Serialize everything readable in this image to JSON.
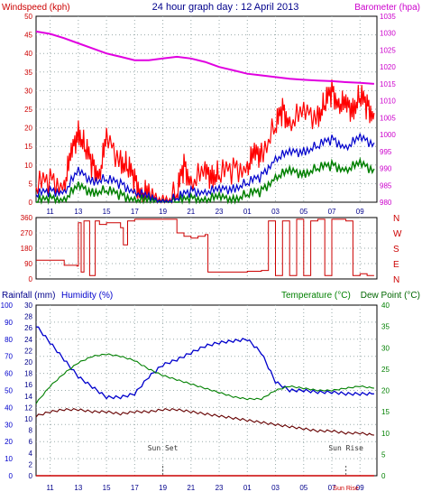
{
  "header": {
    "windspeed_label": "Windspeed (kph)",
    "title": "24 hour graph day : 12 April 2013",
    "barometer_label": "Barometer (hpa)"
  },
  "colors": {
    "wind_red": "#ff0000",
    "wind_blue": "#0000cc",
    "wind_green": "#008000",
    "baro": "#e000e0",
    "dir": "#cc0000",
    "humidity": "#0000cc",
    "temp": "#008000",
    "dew": "#660000",
    "rain": "#cc0000",
    "axis_blue": "#0000cc",
    "axis_red": "#cc0000",
    "axis_green": "#008000"
  },
  "x_axis": {
    "ticks": [
      "11",
      "13",
      "15",
      "17",
      "19",
      "21",
      "23",
      "01",
      "03",
      "05",
      "07",
      "09"
    ],
    "bottom_ticks": [
      "11",
      "13",
      "15",
      "17",
      "19",
      "21",
      "23",
      "01",
      "03",
      "05",
      "07",
      "09"
    ]
  },
  "chart_data": [
    {
      "type": "line",
      "name": "wind-barometer",
      "y_left": {
        "label": "Windspeed (kph)",
        "ticks": [
          "0",
          "5",
          "10",
          "15",
          "20",
          "25",
          "30",
          "35",
          "40",
          "45",
          "50"
        ],
        "range": [
          0,
          50
        ]
      },
      "y_right": {
        "label": "Barometer (hpa)",
        "ticks": [
          "980",
          "985",
          "990",
          "995",
          "1000",
          "1005",
          "1010",
          "1015",
          "1020",
          "1025",
          "1030",
          "1035"
        ],
        "range": [
          980,
          1035
        ]
      },
      "series_note": "gust red, average blue, minimum green, barometer magenta",
      "barometer": {
        "x": [
          10.0,
          11.0,
          12.0,
          13.0,
          14.0,
          15.0,
          16.0,
          17.0,
          18.0,
          19.0,
          20.0,
          21.0,
          22.0,
          23.0,
          24.0,
          25.0,
          26.0,
          27.0,
          28.0,
          29.0,
          30.0,
          31.0,
          32.0,
          33.0,
          34.0
        ],
        "y": [
          1030.5,
          1029.8,
          1028.5,
          1027.0,
          1025.5,
          1024.0,
          1023.0,
          1022.0,
          1022.0,
          1022.5,
          1023.0,
          1022.5,
          1021.5,
          1020.0,
          1019.0,
          1018.0,
          1017.5,
          1017.0,
          1016.5,
          1016.2,
          1016.0,
          1015.8,
          1015.5,
          1015.3,
          1015.0
        ]
      },
      "gust": {
        "x": [
          10.0,
          11.0,
          12.0,
          12.5,
          13.0,
          13.5,
          14.0,
          14.5,
          15.0,
          16.0,
          16.5,
          17.0,
          17.5,
          18.0,
          19.0,
          20.0,
          20.5,
          21.0,
          22.0,
          22.5,
          23.0,
          24.0,
          25.0,
          25.5,
          26.0,
          27.0,
          27.5,
          28.0,
          29.0,
          30.0,
          30.5,
          31.0,
          31.5,
          32.0,
          32.5,
          33.0,
          33.5,
          34.0
        ],
        "y": [
          4,
          6,
          5,
          12,
          20,
          14,
          10,
          8,
          16,
          12,
          9,
          6,
          3,
          1,
          0,
          2,
          10,
          6,
          7,
          8,
          7,
          9,
          10,
          12,
          14,
          20,
          25,
          22,
          23,
          24,
          26,
          30,
          27,
          25,
          26,
          28,
          26,
          24
        ]
      },
      "average": {
        "x": [
          10.0,
          11.0,
          12.0,
          13.0,
          14.0,
          15.0,
          16.0,
          17.0,
          18.0,
          19.0,
          20.0,
          21.0,
          22.0,
          23.0,
          24.0,
          25.0,
          26.0,
          27.0,
          28.0,
          29.0,
          30.0,
          31.0,
          32.0,
          33.0,
          34.0
        ],
        "y": [
          2,
          3,
          3,
          8,
          6,
          6,
          5,
          3,
          1,
          0,
          1,
          3,
          3,
          3,
          4,
          5,
          7,
          12,
          13,
          14,
          15,
          17,
          15,
          17,
          16
        ]
      },
      "minimum": {
        "x": [
          10.0,
          11.0,
          12.0,
          13.0,
          14.0,
          15.0,
          16.0,
          17.0,
          18.0,
          19.0,
          20.0,
          21.0,
          22.0,
          23.0,
          24.0,
          25.0,
          26.0,
          27.0,
          28.0,
          29.0,
          30.0,
          31.0,
          32.0,
          33.0,
          34.0
        ],
        "y": [
          0,
          1,
          1,
          4,
          3,
          3,
          2,
          1,
          0,
          0,
          0,
          1,
          1,
          1,
          1,
          2,
          3,
          7,
          8,
          8,
          9,
          10,
          9,
          10,
          9
        ]
      }
    },
    {
      "type": "line",
      "name": "wind-direction",
      "y_left": {
        "ticks": [
          "0",
          "90",
          "180",
          "270",
          "360"
        ],
        "range": [
          0,
          360
        ]
      },
      "y_right_labels": [
        "N",
        "W",
        "S",
        "E",
        "N"
      ],
      "direction": {
        "x": [
          10.0,
          11.5,
          12.0,
          12.9,
          13.0,
          13.2,
          13.4,
          13.8,
          14.2,
          14.5,
          15.0,
          16.0,
          16.2,
          16.5,
          17.0,
          17.5,
          18.0,
          19.5,
          20.0,
          20.5,
          21.0,
          21.5,
          22.0,
          22.2,
          23.0,
          24.0,
          25.0,
          26.0,
          26.5,
          27.0,
          27.5,
          28.0,
          28.5,
          29.0,
          29.5,
          30.0,
          30.5,
          31.0,
          31.5,
          32.0,
          32.5,
          33.0,
          33.5,
          34.0
        ],
        "y": [
          110,
          110,
          80,
          75,
          330,
          40,
          340,
          20,
          340,
          320,
          330,
          300,
          200,
          340,
          350,
          350,
          350,
          350,
          270,
          250,
          240,
          250,
          260,
          40,
          40,
          40,
          45,
          50,
          340,
          20,
          340,
          20,
          350,
          20,
          340,
          350,
          20,
          350,
          350,
          340,
          20,
          30,
          20,
          20
        ]
      }
    },
    {
      "type": "line",
      "name": "rain-humidity-temperature",
      "labels": {
        "rainfall": "Rainfall (mm)",
        "humidity": "Humidity (%)",
        "temperature": "Temperature (°C)",
        "dew_point": "Dew Point (°C)"
      },
      "y_humidity": {
        "ticks": [
          "0",
          "10",
          "20",
          "30",
          "40",
          "50",
          "60",
          "70",
          "80",
          "90",
          "100"
        ],
        "range": [
          0,
          100
        ]
      },
      "y_rain": {
        "ticks": [
          "0",
          "2",
          "4",
          "6",
          "8",
          "10",
          "12",
          "14",
          "16",
          "18",
          "20",
          "22",
          "24",
          "26",
          "28",
          "30"
        ],
        "range": [
          0,
          30
        ]
      },
      "y_temp": {
        "ticks": [
          "0",
          "5",
          "10",
          "15",
          "20",
          "25",
          "30",
          "35",
          "40"
        ],
        "range": [
          0,
          40
        ]
      },
      "humidity": {
        "x": [
          10.0,
          11.0,
          12.0,
          13.0,
          14.0,
          15.0,
          16.0,
          17.0,
          18.0,
          19.0,
          20.0,
          21.0,
          22.0,
          23.0,
          24.0,
          25.0,
          26.0,
          27.0,
          28.0,
          29.0,
          30.0,
          31.0,
          32.0,
          33.0,
          34.0
        ],
        "y": [
          88,
          78,
          68,
          58,
          52,
          46,
          46,
          48,
          58,
          65,
          68,
          72,
          76,
          78,
          79,
          80,
          72,
          55,
          50,
          50,
          49,
          49,
          48,
          48,
          48
        ]
      },
      "temperature": {
        "x": [
          10.0,
          11.0,
          12.0,
          13.0,
          14.0,
          15.0,
          16.0,
          17.0,
          18.0,
          19.0,
          20.0,
          21.0,
          22.0,
          23.0,
          24.0,
          25.0,
          26.0,
          27.0,
          28.0,
          29.0,
          30.0,
          31.0,
          32.0,
          33.0,
          34.0
        ],
        "y": [
          17,
          21,
          24,
          26.5,
          28,
          28.5,
          28,
          27,
          25,
          23.5,
          22.5,
          21.5,
          20.5,
          19.5,
          18.5,
          18,
          18,
          20,
          21,
          20.5,
          20,
          20,
          20.5,
          21,
          20.5
        ]
      },
      "dew_point": {
        "x": [
          10.0,
          11.0,
          12.0,
          13.0,
          14.0,
          15.0,
          16.0,
          17.0,
          18.0,
          19.0,
          20.0,
          21.0,
          22.0,
          23.0,
          24.0,
          25.0,
          26.0,
          27.0,
          28.0,
          29.0,
          30.0,
          31.0,
          32.0,
          33.0,
          34.0
        ],
        "y": [
          14,
          15,
          15.5,
          15.5,
          15,
          15,
          14.5,
          15,
          15,
          15.5,
          15.5,
          15,
          14.5,
          14,
          13.5,
          13,
          12.5,
          12,
          11.5,
          11,
          10.5,
          10.5,
          10,
          10,
          9.5
        ]
      },
      "rainfall": {
        "x": [
          10.0,
          34.0
        ],
        "y": [
          0,
          0
        ]
      },
      "annotations": [
        {
          "text": "Sun Set",
          "x": 19.0
        },
        {
          "text": "Sun Rise",
          "x": 32.0
        },
        {
          "text": "Sun Rise",
          "x": 32.0
        }
      ]
    }
  ],
  "annotation_texts": {
    "sun_set": "Sun Set",
    "sun_rise": "Sun Rise",
    "nowbar": "Sun Rise"
  }
}
